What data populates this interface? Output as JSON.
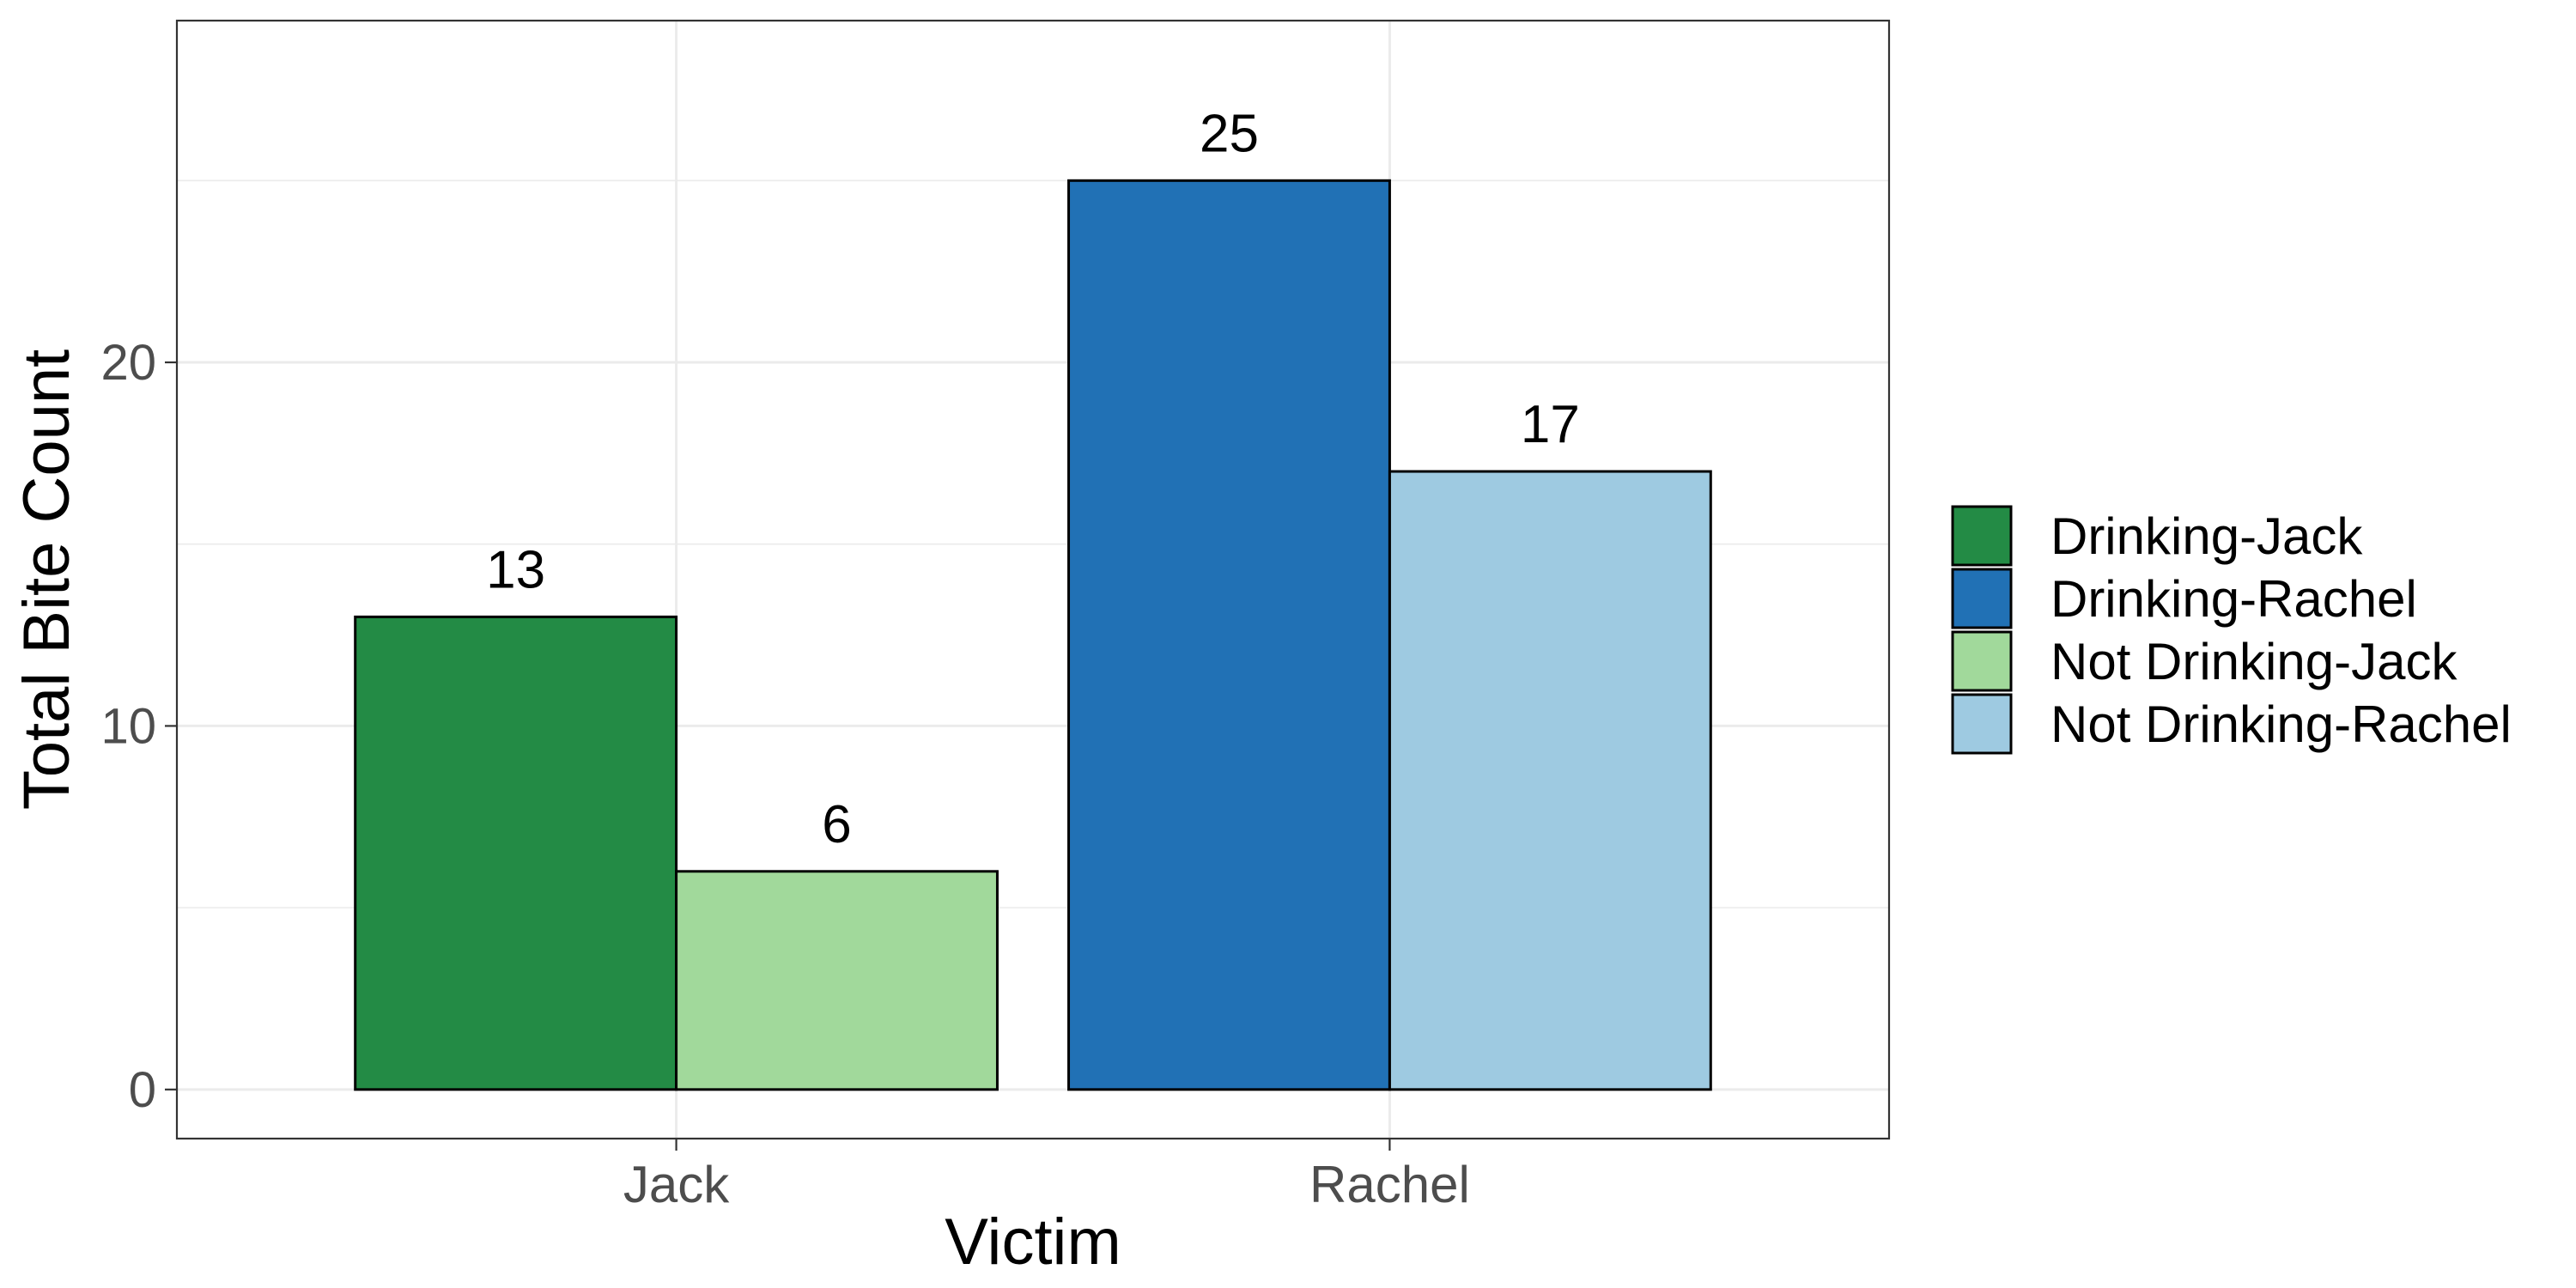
{
  "chart_data": {
    "type": "bar",
    "xlabel": "Victim",
    "ylabel": "Total Bite Count",
    "categories": [
      "Jack",
      "Rachel"
    ],
    "ylim": [
      -1.35,
      29.4
    ],
    "yticks": [
      0,
      10,
      20
    ],
    "grid": true,
    "legend_position": "right",
    "series": [
      {
        "name": "Drinking-Jack",
        "color": "#238b45",
        "category": "Jack",
        "slot": "left",
        "value": 13
      },
      {
        "name": "Drinking-Rachel",
        "color": "#2171b5",
        "category": "Rachel",
        "slot": "left",
        "value": 25
      },
      {
        "name": "Not Drinking-Jack",
        "color": "#a1d99b",
        "category": "Jack",
        "slot": "right",
        "value": 6
      },
      {
        "name": "Not Drinking-Rachel",
        "color": "#9ecae1",
        "category": "Rachel",
        "slot": "right",
        "value": 17
      }
    ]
  }
}
